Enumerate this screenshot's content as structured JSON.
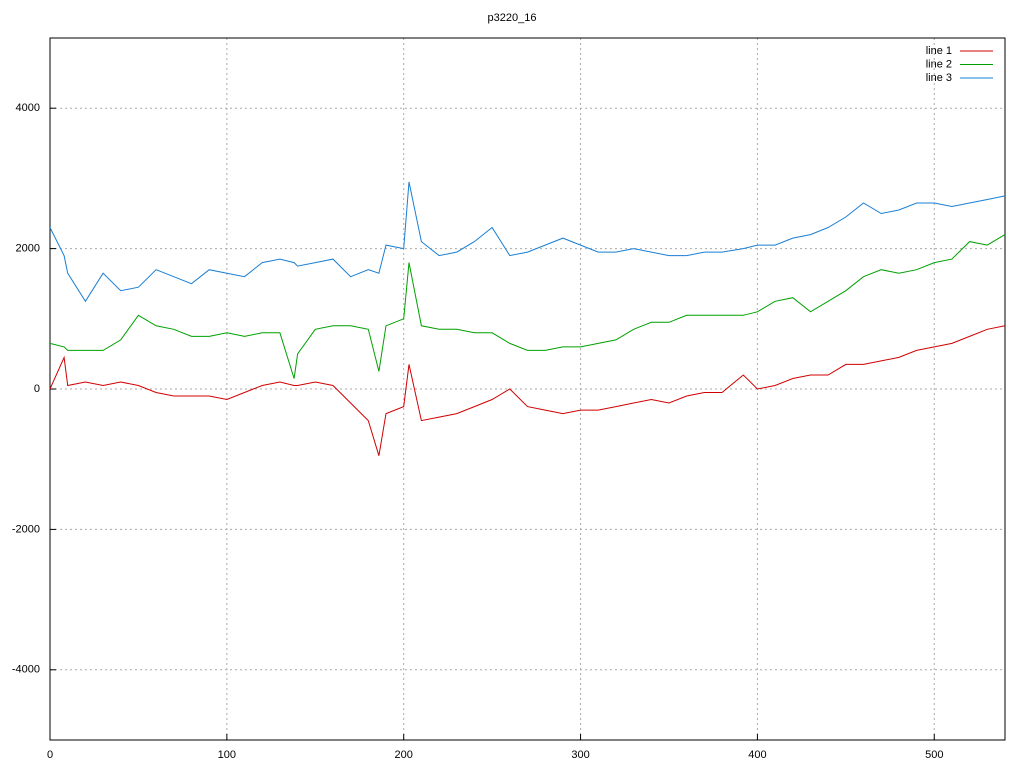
{
  "chart_data": {
    "type": "line",
    "title": "p3220_16",
    "x": [
      0,
      8,
      10,
      20,
      30,
      40,
      50,
      60,
      70,
      80,
      90,
      100,
      110,
      120,
      130,
      138,
      140,
      150,
      160,
      170,
      180,
      186,
      190,
      200,
      203,
      210,
      220,
      230,
      240,
      250,
      260,
      270,
      280,
      290,
      300,
      310,
      320,
      330,
      340,
      350,
      360,
      370,
      380,
      392,
      400,
      410,
      420,
      430,
      440,
      450,
      460,
      470,
      480,
      490,
      500,
      510,
      520,
      530,
      540
    ],
    "series": [
      {
        "name": "line 1",
        "color": "#d00000",
        "values": [
          0,
          450,
          50,
          100,
          50,
          100,
          50,
          -50,
          -100,
          -100,
          -100,
          -150,
          -50,
          50,
          100,
          50,
          50,
          100,
          50,
          -200,
          -450,
          -950,
          -350,
          -250,
          350,
          -450,
          -400,
          -350,
          -250,
          -150,
          0,
          -250,
          -300,
          -350,
          -300,
          -300,
          -250,
          -200,
          -150,
          -200,
          -100,
          -50,
          -50,
          200,
          0,
          50,
          150,
          200,
          200,
          350,
          350,
          400,
          450,
          550,
          600,
          650,
          750,
          850,
          900
        ]
      },
      {
        "name": "line 2",
        "color": "#00a000",
        "values": [
          650,
          600,
          550,
          550,
          550,
          700,
          1050,
          900,
          850,
          750,
          750,
          800,
          750,
          800,
          800,
          150,
          500,
          850,
          900,
          900,
          850,
          250,
          900,
          1000,
          1800,
          900,
          850,
          850,
          800,
          800,
          650,
          550,
          550,
          600,
          600,
          650,
          700,
          850,
          950,
          950,
          1050,
          1050,
          1050,
          1050,
          1100,
          1250,
          1300,
          1100,
          1250,
          1400,
          1600,
          1700,
          1650,
          1700,
          1800,
          1850,
          2100,
          2050,
          2200
        ]
      },
      {
        "name": "line 3",
        "color": "#1a7fd4",
        "values": [
          2300,
          1900,
          1650,
          1250,
          1650,
          1400,
          1450,
          1700,
          1600,
          1500,
          1700,
          1650,
          1600,
          1800,
          1850,
          1800,
          1750,
          1800,
          1850,
          1600,
          1700,
          1650,
          2050,
          2000,
          2950,
          2100,
          1900,
          1950,
          2100,
          2300,
          1900,
          1950,
          2050,
          2150,
          2050,
          1950,
          1950,
          2000,
          1950,
          1900,
          1900,
          1950,
          1950,
          2000,
          2050,
          2050,
          2150,
          2200,
          2300,
          2450,
          2650,
          2500,
          2550,
          2650,
          2650,
          2600,
          2650,
          2700,
          2750
        ]
      }
    ],
    "xlim": [
      0,
      540
    ],
    "xticks": [
      0,
      100,
      200,
      300,
      400,
      500
    ],
    "ylim": [
      -5000,
      5000
    ],
    "yticks": [
      -4000,
      -2000,
      0,
      2000,
      4000
    ],
    "grid": true,
    "legend": "top-right"
  }
}
